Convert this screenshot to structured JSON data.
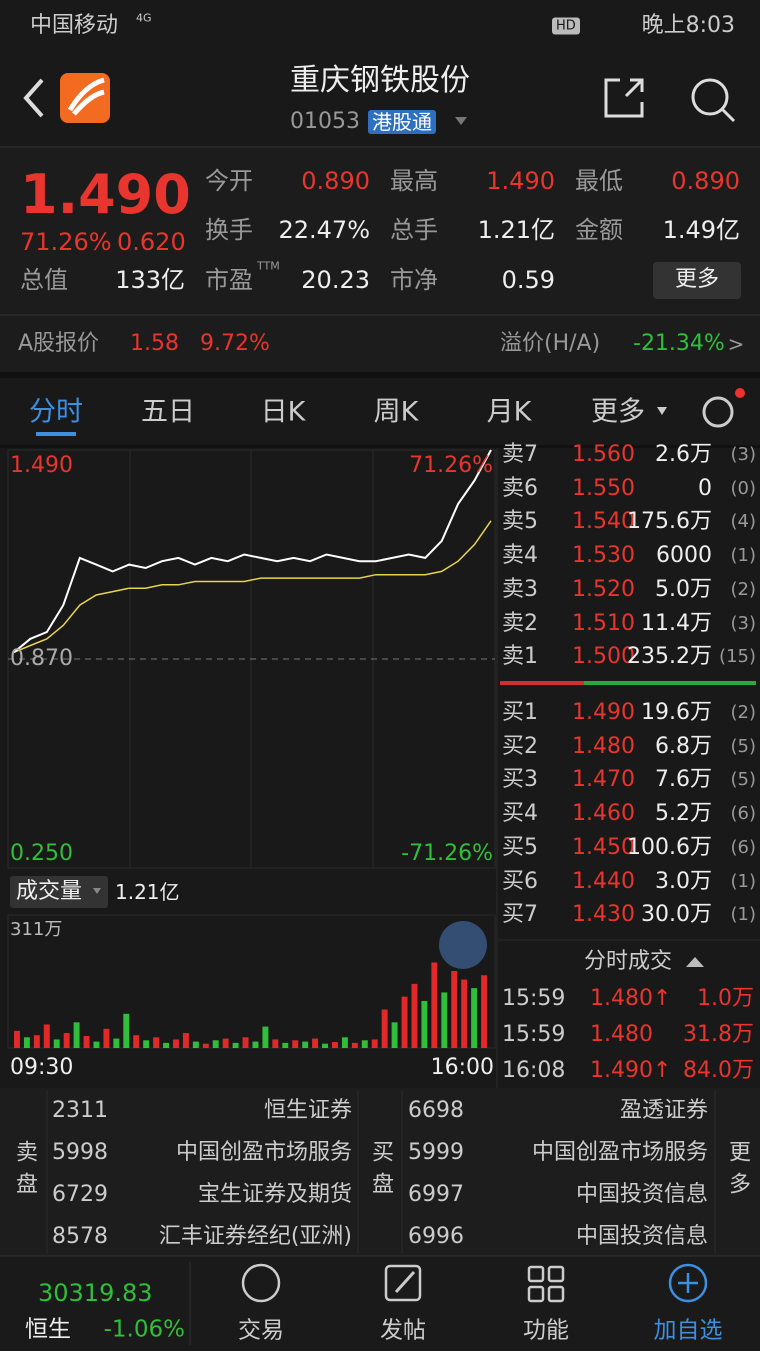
{
  "status_bar": {
    "carrier": "中国移动",
    "network": "4G",
    "hd": "HD",
    "time": "晚上8:03"
  },
  "header": {
    "title": "重庆钢铁股份",
    "code": "01053",
    "badge": "港股通"
  },
  "quote": {
    "price": "1.490",
    "change_pct": "71.26%",
    "change": "0.620",
    "fields": [
      {
        "label": "今开",
        "value": "0.890"
      },
      {
        "label": "最高",
        "value": "1.490"
      },
      {
        "label": "最低",
        "value": "0.890"
      },
      {
        "label": "换手",
        "value": "22.47%"
      },
      {
        "label": "总手",
        "value": "1.21亿"
      },
      {
        "label": "金额",
        "value": "1.49亿"
      },
      {
        "label": "总值",
        "value": "133亿"
      },
      {
        "label": "市盈",
        "value": "20.23",
        "sup": "TTM"
      },
      {
        "label": "市净",
        "value": "0.59"
      }
    ],
    "more": "更多"
  },
  "a_share": {
    "label": "A股报价",
    "price": "1.58",
    "pct": "9.72%",
    "premium_label": "溢价(H/A)",
    "premium": "-21.34%",
    "arrow": ">"
  },
  "tabs": [
    "分时",
    "五日",
    "日K",
    "周K",
    "月K",
    "更多"
  ],
  "intraday": {
    "ylim": [
      0.25,
      1.49
    ],
    "yticks": [
      {
        "value": 1.49,
        "label": "1.490"
      },
      {
        "value": 0.87,
        "label": "0.870"
      },
      {
        "value": 0.25,
        "label": "0.250"
      }
    ],
    "right_labels": [
      "71.26%",
      "-71.26%"
    ],
    "x_labels": [
      "09:30",
      "16:00"
    ],
    "price": [
      0.89,
      0.93,
      0.95,
      1.03,
      1.17,
      1.15,
      1.13,
      1.15,
      1.14,
      1.16,
      1.17,
      1.15,
      1.17,
      1.16,
      1.18,
      1.17,
      1.16,
      1.17,
      1.16,
      1.18,
      1.17,
      1.16,
      1.16,
      1.17,
      1.18,
      1.17,
      1.22,
      1.33,
      1.4,
      1.49
    ],
    "avg": [
      0.89,
      0.91,
      0.93,
      0.97,
      1.03,
      1.06,
      1.07,
      1.08,
      1.08,
      1.09,
      1.09,
      1.1,
      1.1,
      1.1,
      1.1,
      1.11,
      1.11,
      1.11,
      1.11,
      1.11,
      1.11,
      1.11,
      1.12,
      1.12,
      1.12,
      1.12,
      1.13,
      1.16,
      1.21,
      1.28
    ],
    "price_color": "#ffffff",
    "avg_color": "#e8d44d"
  },
  "volume": {
    "label": "成交量",
    "total": "1.21亿",
    "max_label": "311万",
    "ylim": [
      0,
      311
    ],
    "values": [
      40,
      25,
      30,
      55,
      20,
      35,
      60,
      28,
      15,
      45,
      22,
      80,
      30,
      18,
      25,
      12,
      20,
      35,
      15,
      10,
      18,
      22,
      12,
      25,
      15,
      50,
      20,
      12,
      18,
      15,
      22,
      10,
      14,
      25,
      12,
      18,
      20,
      90,
      60,
      120,
      150,
      110,
      200,
      130,
      180,
      160,
      140,
      170
    ],
    "colors": [
      "#e02a2a",
      "#2fbf3a",
      "#e02a2a",
      "#e02a2a",
      "#2fbf3a",
      "#e02a2a",
      "#2fbf3a",
      "#e02a2a",
      "#2fbf3a",
      "#e02a2a",
      "#2fbf3a",
      "#2fbf3a",
      "#e02a2a",
      "#2fbf3a",
      "#e02a2a",
      "#2fbf3a",
      "#e02a2a",
      "#e02a2a",
      "#2fbf3a",
      "#e02a2a",
      "#2fbf3a",
      "#e02a2a",
      "#2fbf3a",
      "#e02a2a",
      "#2fbf3a",
      "#2fbf3a",
      "#e02a2a",
      "#2fbf3a",
      "#e02a2a",
      "#2fbf3a",
      "#e02a2a",
      "#2fbf3a",
      "#e02a2a",
      "#2fbf3a",
      "#e02a2a",
      "#2fbf3a",
      "#e02a2a",
      "#e02a2a",
      "#2fbf3a",
      "#e02a2a",
      "#e02a2a",
      "#2fbf3a",
      "#e02a2a",
      "#2fbf3a",
      "#e02a2a",
      "#e02a2a",
      "#2fbf3a",
      "#e02a2a"
    ]
  },
  "order_book": {
    "sell": [
      [
        "卖7",
        "1.560",
        "2.6万",
        "(3)"
      ],
      [
        "卖6",
        "1.550",
        "0",
        "(0)"
      ],
      [
        "卖5",
        "1.540",
        "175.6万",
        "(4)"
      ],
      [
        "卖4",
        "1.530",
        "6000",
        "(1)"
      ],
      [
        "卖3",
        "1.520",
        "5.0万",
        "(2)"
      ],
      [
        "卖2",
        "1.510",
        "11.4万",
        "(3)"
      ],
      [
        "卖1",
        "1.500",
        "235.2万",
        "(15)"
      ]
    ],
    "buy": [
      [
        "买1",
        "1.490",
        "19.6万",
        "(2)"
      ],
      [
        "买2",
        "1.480",
        "6.8万",
        "(5)"
      ],
      [
        "买3",
        "1.470",
        "7.6万",
        "(5)"
      ],
      [
        "买4",
        "1.460",
        "5.2万",
        "(6)"
      ],
      [
        "买5",
        "1.450",
        "100.6万",
        "(6)"
      ],
      [
        "买6",
        "1.440",
        "3.0万",
        "(1)"
      ],
      [
        "买7",
        "1.430",
        "30.0万",
        "(1)"
      ]
    ]
  },
  "trades": {
    "title": "分时成交",
    "rows": [
      [
        "15:59",
        "1.480↑",
        "1.0万"
      ],
      [
        "15:59",
        "1.480",
        "31.8万"
      ],
      [
        "16:08",
        "1.490↑",
        "84.0万"
      ]
    ]
  },
  "brokers": {
    "sell_label": "卖盘",
    "sell": [
      [
        "2311",
        "恒生证券"
      ],
      [
        "5998",
        "中国创盈市场服务"
      ],
      [
        "6729",
        "宝生证券及期货"
      ],
      [
        "8578",
        "汇丰证券经纪(亚洲)"
      ]
    ],
    "buy_label": "买盘",
    "buy": [
      [
        "6698",
        "盈透证券"
      ],
      [
        "5999",
        "中国创盈市场服务"
      ],
      [
        "6997",
        "中国投资信息"
      ],
      [
        "6996",
        "中国投资信息"
      ]
    ],
    "more": "更多"
  },
  "bottom_nav": {
    "index_value": "30319.83",
    "index_name": "恒生",
    "index_pct": "-1.06%",
    "items": [
      "交易",
      "发帖",
      "功能",
      "加自选"
    ]
  }
}
